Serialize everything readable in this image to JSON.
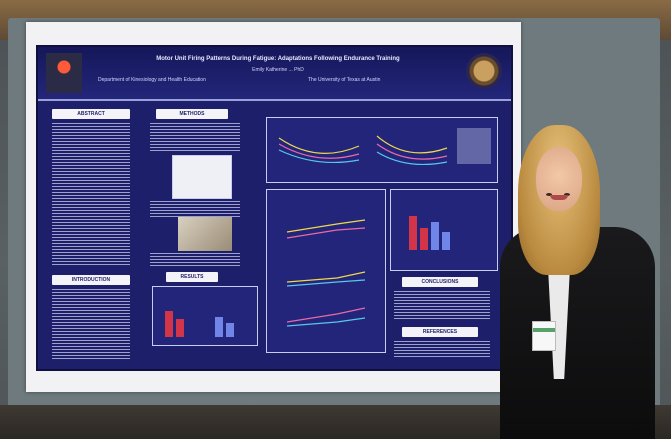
{
  "poster": {
    "title": "Motor Unit Firing Patterns During Fatigue: Adaptations Following Endurance Training",
    "authors": "Emily Katherine ... PhD",
    "department": "Department of Kinesiology and Health Education",
    "university": "The University of Texas at Austin",
    "sections": {
      "abstract": "ABSTRACT",
      "methods": "METHODS",
      "introduction": "INTRODUCTION",
      "results": "RESULTS",
      "conclusions": "CONCLUSIONS",
      "references": "REFERENCES"
    }
  },
  "colors": {
    "poster_bg": "#1d1f6b",
    "header_bg": "#15175a",
    "section_header_bg": "#f4f4f8",
    "bar_red": "#d2354a",
    "bar_blue": "#6f86e8",
    "curve_yellow": "#f0d84a",
    "curve_pink": "#e86aa8",
    "curve_cyan": "#58c8e8"
  },
  "icons": {
    "left_logo": "lighthouse-logo-icon",
    "right_logo": "university-seal-icon"
  }
}
